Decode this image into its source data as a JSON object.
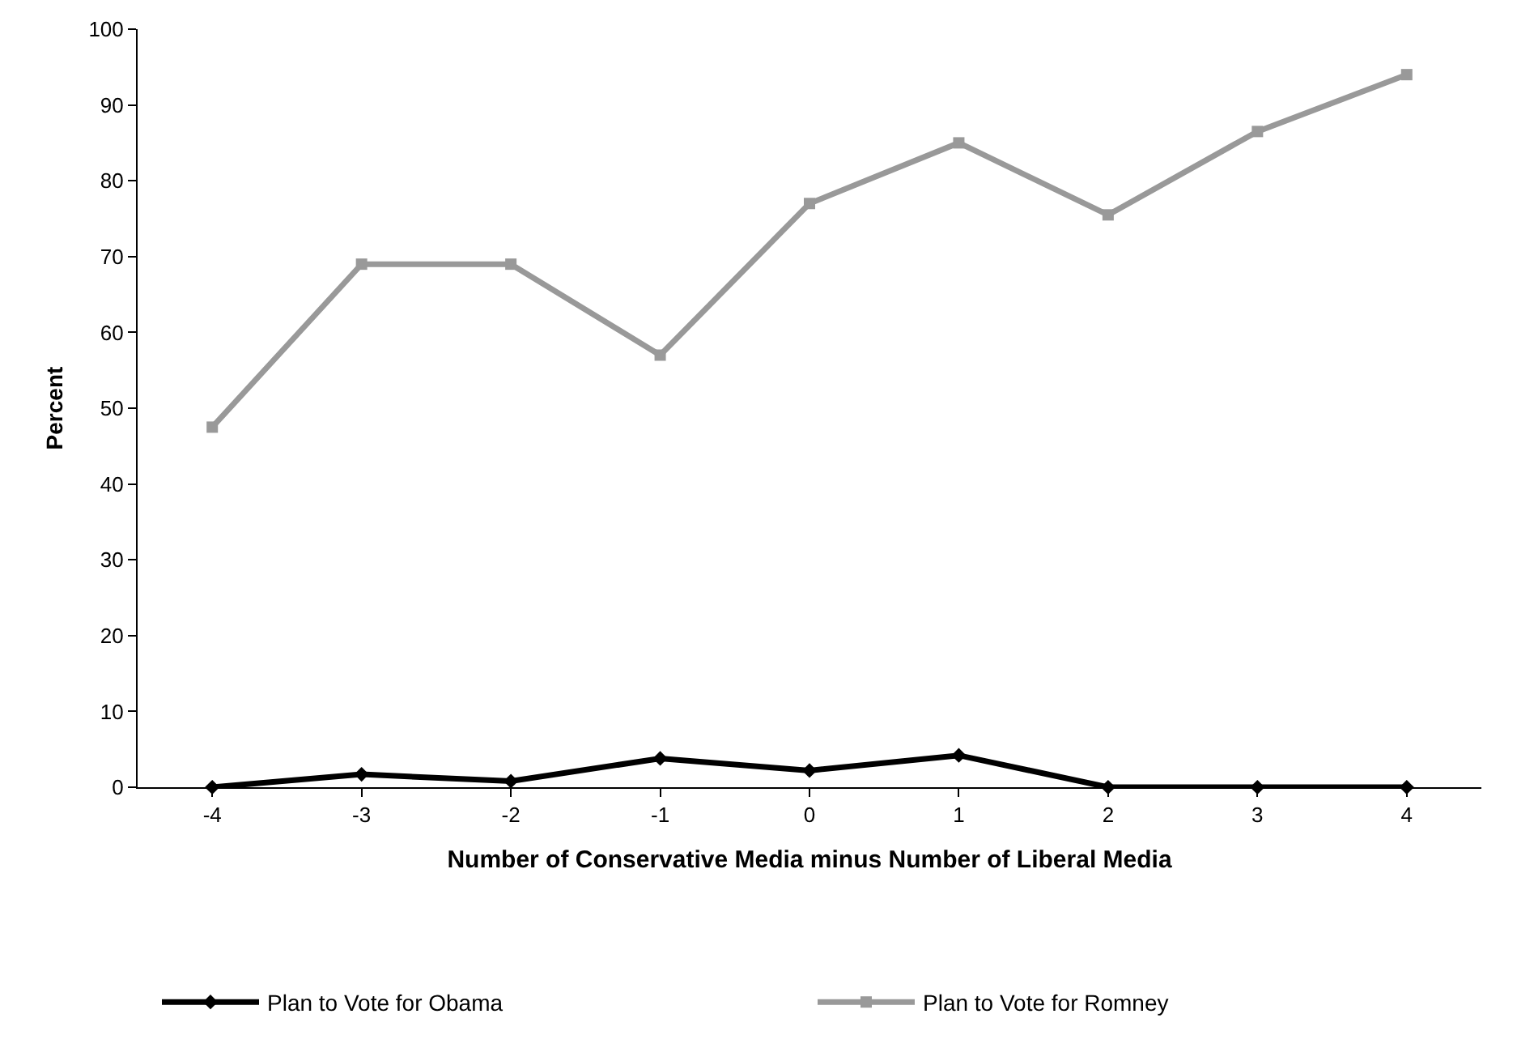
{
  "chart_data": {
    "type": "line",
    "xlabel": "Number of Conservative Media minus Number of Liberal Media",
    "ylabel": "Percent",
    "categories": [
      "-4",
      "-3",
      "-2",
      "-1",
      "0",
      "1",
      "2",
      "3",
      "4"
    ],
    "series": [
      {
        "name": "Plan to Vote for Obama",
        "color": "#000000",
        "marker": "diamond",
        "values": [
          0,
          1.7,
          0.8,
          3.8,
          2.2,
          4.2,
          0,
          0,
          0
        ]
      },
      {
        "name": "Plan to Vote for Romney",
        "color": "#999999",
        "marker": "square",
        "values": [
          47.5,
          69,
          69,
          57,
          77,
          85,
          75.5,
          86.5,
          94
        ]
      }
    ],
    "ylim": [
      0,
      100
    ],
    "yticks": [
      0,
      10,
      20,
      30,
      40,
      50,
      60,
      70,
      80,
      90,
      100
    ],
    "grid": false,
    "legend": "bottom",
    "line_style": "solid"
  }
}
